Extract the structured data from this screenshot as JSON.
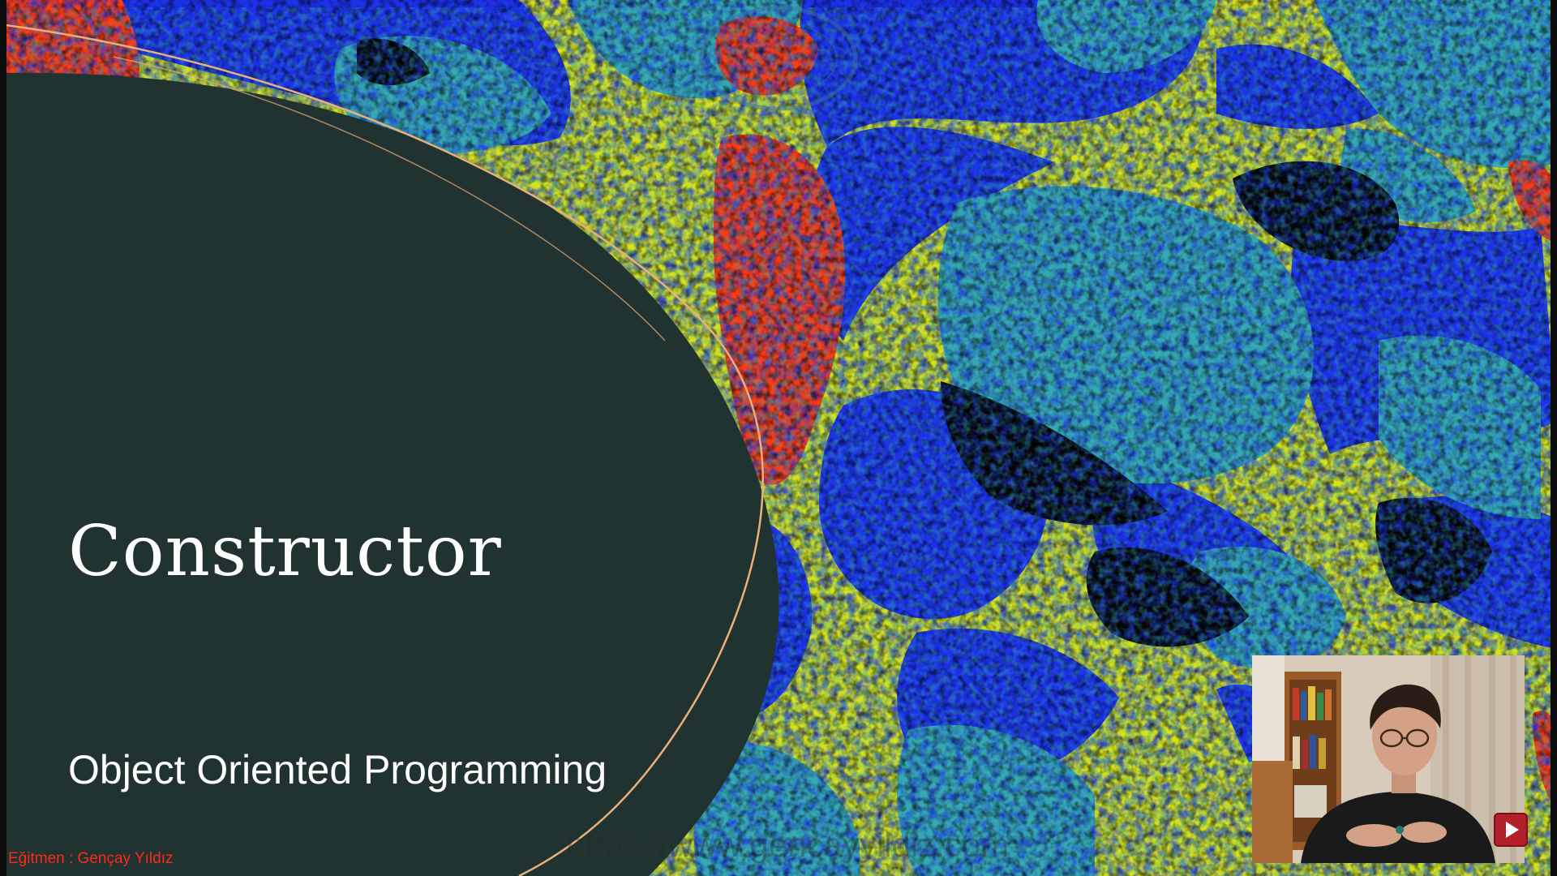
{
  "slide": {
    "title": "Constructor",
    "subtitle": "Object Oriented Programming",
    "instructor": "Eğitmen : Gençay Yıldız",
    "url_watermark": "https://www.gencayyildiz.com"
  },
  "overlay": {
    "webcam_icon": "person-icon",
    "record_icon": "play-icon"
  },
  "colors": {
    "panel": "#203330",
    "orange": "#ff3a10",
    "yellow": "#d9e31a",
    "blue": "#1c2fe6",
    "teal": "#33a7b1",
    "black": "#050505",
    "line": "#ebb07a",
    "instructor_text": "#ff2a1a"
  }
}
